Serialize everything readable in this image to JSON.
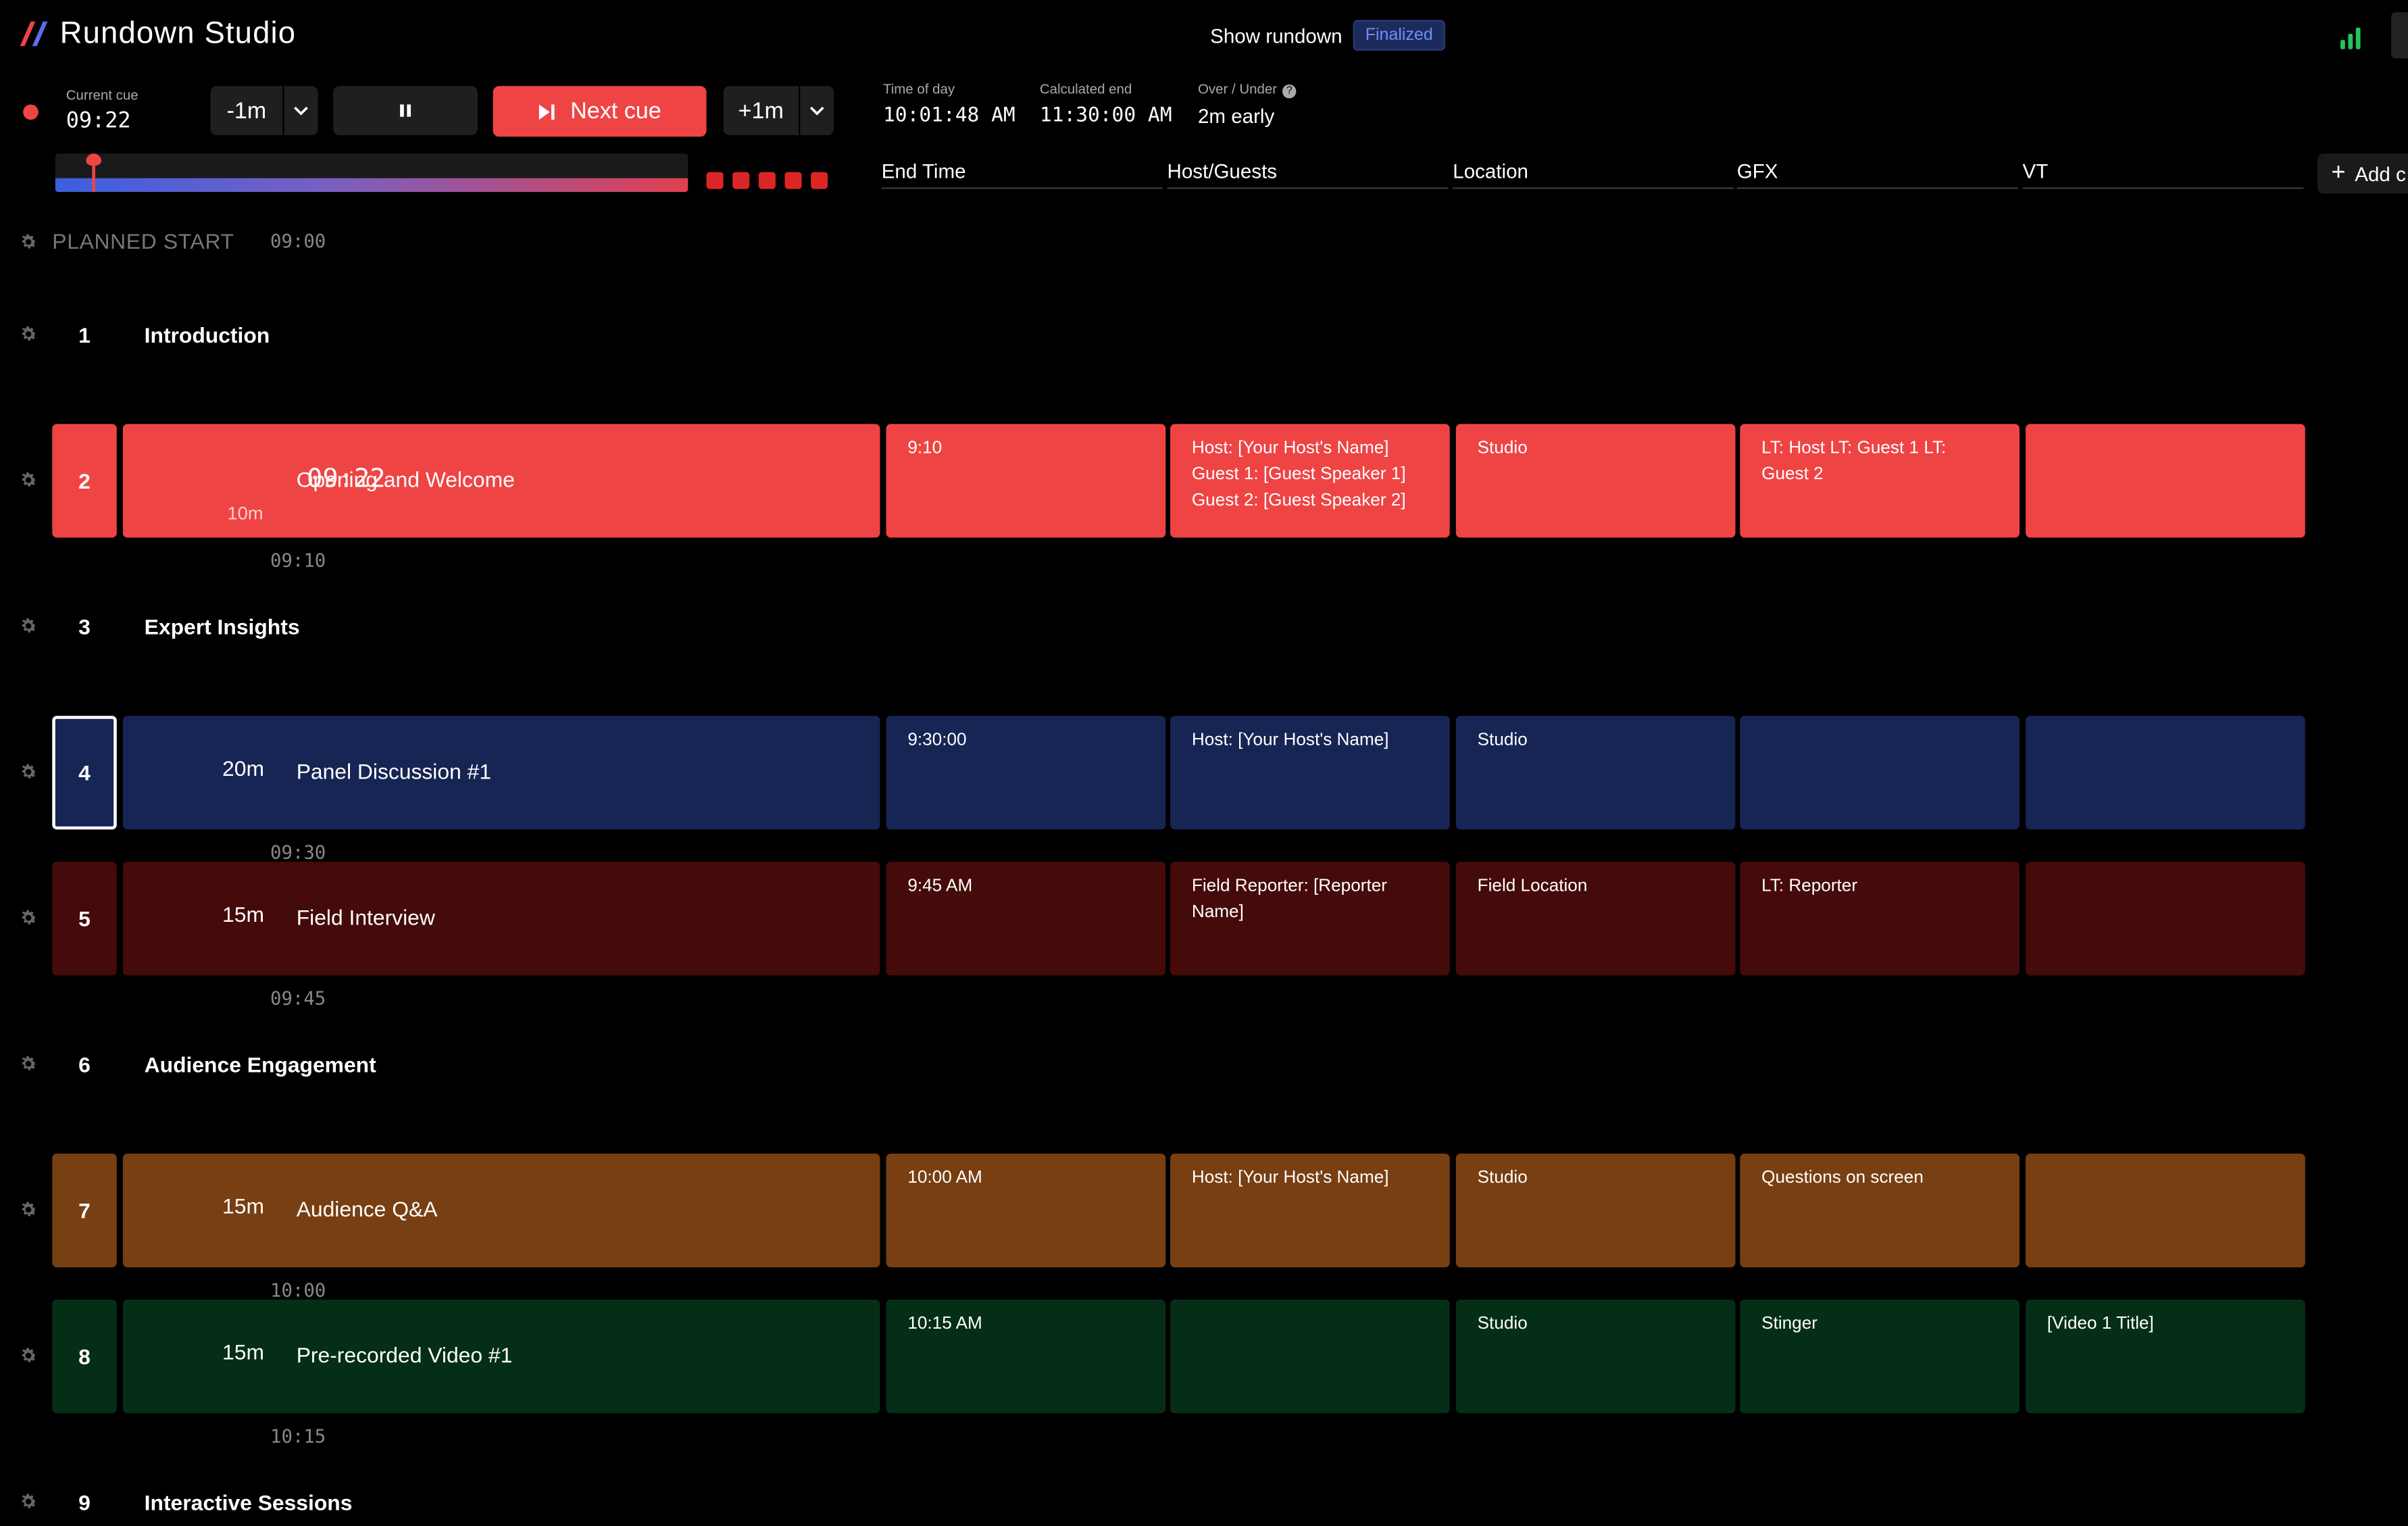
{
  "app": {
    "title": "Rundown Studio"
  },
  "header": {
    "show_label": "Show rundown",
    "status_badge": "Finalized"
  },
  "transport": {
    "current_cue_label": "Current cue",
    "current_cue_value": "09:22",
    "minus_label": "-1m",
    "plus_label": "+1m",
    "next_label": "Next cue"
  },
  "stats": {
    "time_of_day_label": "Time of day",
    "time_of_day_value": "10:01:48 AM",
    "calc_end_label": "Calculated end",
    "calc_end_value": "11:30:00 AM",
    "over_under_label": "Over / Under",
    "over_under_value": "2m early"
  },
  "columns": [
    "End Time",
    "Host/Guests",
    "Location",
    "GFX",
    "VT"
  ],
  "add_column_label": "Add c",
  "planned_start": {
    "label": "PLANNED START",
    "time": "09:00"
  },
  "rows": [
    {
      "type": "section",
      "num": "1",
      "title": "Introduction"
    },
    {
      "type": "cue",
      "num": "2",
      "color": "#ef4444",
      "current": true,
      "time": "09:22",
      "duration": "10m",
      "title": "Opening and Welcome",
      "end": "09:10",
      "cells": [
        "9:10",
        "Host: [Your Host's Name]\nGuest 1: [Guest Speaker 1]\nGuest 2: [Guest Speaker 2]",
        "Studio",
        "LT: Host LT: Guest 1 LT: Guest 2",
        ""
      ]
    },
    {
      "type": "section",
      "num": "3",
      "title": "Expert Insights"
    },
    {
      "type": "cue",
      "num": "4",
      "color": "#172554",
      "selected": true,
      "duration": "20m",
      "title": "Panel Discussion #1",
      "end": "09:30",
      "cells": [
        "9:30:00",
        "Host: [Your Host's Name]",
        "Studio",
        "",
        ""
      ]
    },
    {
      "type": "cue",
      "num": "5",
      "color": "#450a0a",
      "duration": "15m",
      "title": "Field Interview",
      "end": "09:45",
      "cells": [
        "9:45 AM",
        "Field Reporter: [Reporter Name]",
        "Field Location",
        "LT: Reporter",
        ""
      ]
    },
    {
      "type": "section",
      "num": "6",
      "title": "Audience Engagement"
    },
    {
      "type": "cue",
      "num": "7",
      "color": "#783f12",
      "duration": "15m",
      "title": "Audience Q&A",
      "end": "10:00",
      "cells": [
        "10:00 AM",
        "Host: [Your Host's Name]",
        "Studio",
        "Questions on screen",
        ""
      ]
    },
    {
      "type": "cue",
      "num": "8",
      "color": "#052e16",
      "duration": "15m",
      "title": "Pre-recorded Video #1",
      "end": "10:15",
      "cells": [
        "10:15 AM",
        "",
        "Studio",
        "Stinger",
        "[Video 1 Title]"
      ]
    },
    {
      "type": "section",
      "num": "9",
      "title": "Interactive Sessions"
    }
  ]
}
